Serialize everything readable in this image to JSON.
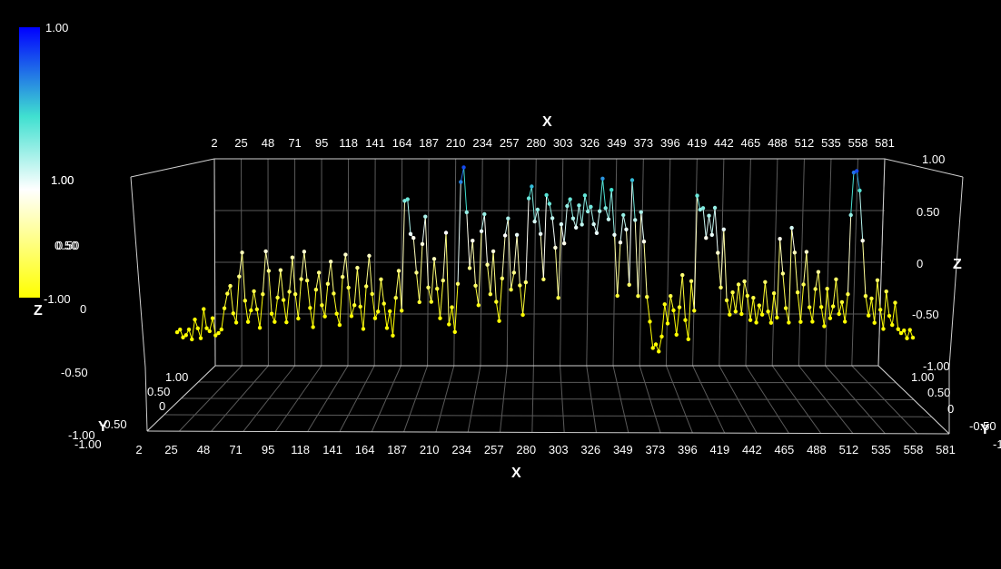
{
  "chart_data": {
    "type": "scatter3d",
    "mode": "lines+markers",
    "axes": {
      "x": {
        "title": "X",
        "range": [
          2,
          581
        ],
        "ticks": [
          "2",
          "25",
          "48",
          "71",
          "95",
          "118",
          "141",
          "164",
          "187",
          "210",
          "234",
          "257",
          "280",
          "303",
          "326",
          "349",
          "373",
          "396",
          "419",
          "442",
          "465",
          "488",
          "512",
          "535",
          "558",
          "581"
        ]
      },
      "y": {
        "title": "Y",
        "range": [
          -1.0,
          1.0
        ],
        "ticks": [
          "-1.00",
          "-0.50",
          "0",
          "0.50",
          "1.00"
        ]
      },
      "z": {
        "title": "Z",
        "range": [
          -1.0,
          1.0
        ],
        "ticks": [
          "-1.00",
          "-0.50",
          "0",
          "0.50",
          "1.00"
        ]
      }
    },
    "colorbar": {
      "labels": [
        "1.00",
        "1.00",
        "0.50",
        "-1.00"
      ],
      "colors": [
        "#0000ff",
        "#40e0d0",
        "#ffffff",
        "#ffff00"
      ]
    },
    "grid": true,
    "x_start": 2,
    "x_end": 581,
    "z_values": [
      -0.72,
      -0.66,
      -0.7,
      -0.74,
      -0.65,
      -0.71,
      -0.58,
      -0.63,
      -0.69,
      -0.47,
      -0.62,
      -0.71,
      -0.55,
      -0.68,
      -0.72,
      -0.65,
      -0.41,
      -0.33,
      -0.22,
      -0.45,
      -0.6,
      -0.12,
      0.05,
      -0.38,
      -0.55,
      -0.5,
      -0.28,
      -0.42,
      -0.66,
      -0.3,
      0.15,
      -0.1,
      -0.48,
      -0.62,
      -0.35,
      -0.05,
      -0.4,
      -0.58,
      -0.25,
      0.02,
      -0.3,
      -0.5,
      -0.18,
      0.12,
      -0.22,
      -0.45,
      -0.6,
      -0.3,
      -0.1,
      -0.38,
      -0.55,
      -0.2,
      0.05,
      -0.32,
      -0.48,
      -0.65,
      -0.15,
      0.1,
      -0.28,
      -0.52,
      -0.38,
      -0.08,
      -0.42,
      -0.6,
      -0.25,
      0.08,
      -0.35,
      -0.55,
      -0.45,
      -0.2,
      -0.4,
      -0.6,
      -0.5,
      -0.7,
      -0.3,
      -0.1,
      -0.45,
      0.55,
      0.6,
      0.3,
      0.2,
      -0.1,
      -0.35,
      0.15,
      0.45,
      -0.2,
      -0.4,
      0.05,
      -0.3,
      -0.55,
      -0.15,
      0.25,
      -0.6,
      -0.4,
      -0.7,
      -0.2,
      0.82,
      0.9,
      0.5,
      -0.1,
      0.2,
      -0.2,
      -0.45,
      0.3,
      0.5,
      -0.05,
      -0.3,
      0.15,
      -0.4,
      -0.55,
      -0.2,
      0.25,
      0.45,
      -0.3,
      -0.1,
      0.3,
      -0.25,
      -0.5,
      -0.15,
      0.6,
      0.75,
      0.35,
      0.5,
      0.3,
      -0.2,
      0.65,
      0.6,
      0.4,
      0.15,
      -0.3,
      0.35,
      0.2,
      0.5,
      0.6,
      0.45,
      0.3,
      0.55,
      0.4,
      0.62,
      0.5,
      0.58,
      0.35,
      0.3,
      0.45,
      0.8,
      0.55,
      0.38,
      0.7,
      0.3,
      -0.35,
      0.2,
      0.5,
      0.3,
      -0.2,
      0.75,
      0.4,
      -0.3,
      0.45,
      0.2,
      -0.3,
      -0.6,
      -0.82,
      -0.75,
      -0.88,
      -0.7,
      -0.45,
      -0.6,
      -0.3,
      -0.5,
      -0.7,
      -0.4,
      -0.15,
      -0.55,
      -0.7,
      -0.2,
      -0.45,
      0.6,
      0.5,
      0.55,
      0.2,
      0.45,
      0.3,
      0.5,
      0.1,
      -0.2,
      0.3,
      -0.35,
      -0.55,
      -0.3,
      -0.45,
      -0.25,
      -0.5,
      -0.15,
      -0.35,
      -0.55,
      -0.3,
      -0.6,
      -0.4,
      -0.55,
      -0.2,
      -0.45,
      -0.62,
      -0.3,
      -0.5,
      0.2,
      -0.1,
      -0.4,
      -0.6,
      0.35,
      0.05,
      -0.3,
      -0.55,
      -0.25,
      0.1,
      -0.4,
      -0.6,
      -0.25,
      -0.05,
      -0.45,
      -0.6,
      -0.3,
      -0.55,
      -0.4,
      -0.2,
      -0.5,
      -0.35,
      -0.6,
      -0.3,
      0.5,
      0.85,
      0.9,
      0.65,
      0.2,
      -0.3,
      -0.55,
      -0.35,
      -0.55,
      -0.2,
      -0.45,
      -0.6,
      -0.3,
      -0.5,
      -0.65,
      -0.4,
      -0.62,
      -0.72,
      -0.66,
      -0.7,
      -0.68,
      -0.72
    ]
  }
}
